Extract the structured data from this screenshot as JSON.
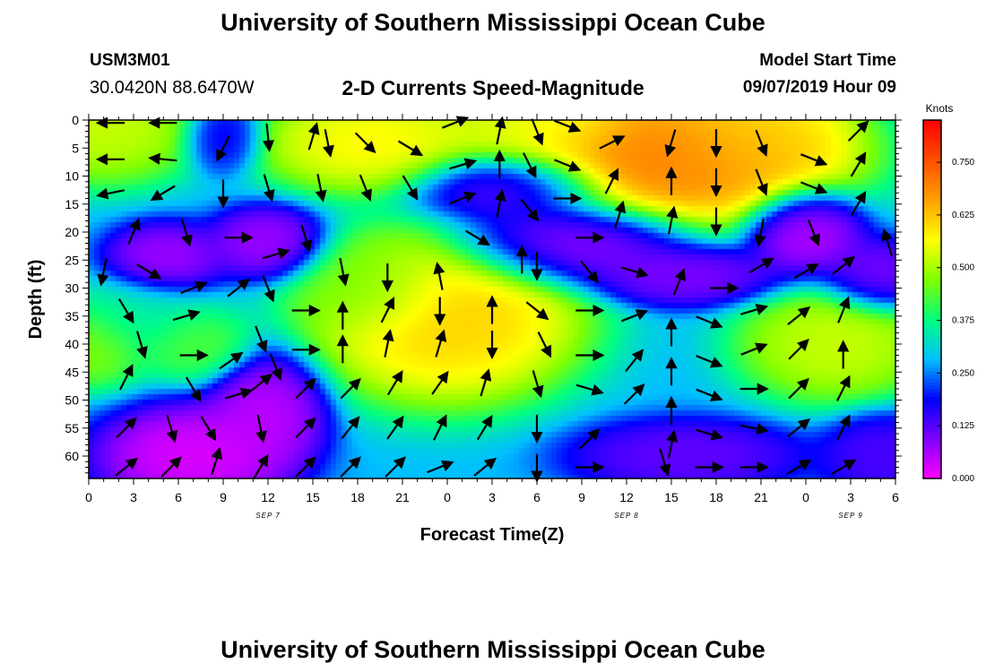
{
  "header": {
    "title": "University of Southern Mississippi Ocean Cube",
    "station_id": "USM3M01",
    "location": "30.0420N 88.6470W",
    "plot_title": "2-D Currents Speed-Magnitude",
    "model_start_label": "Model Start Time",
    "model_start_value": "09/07/2019 Hour 09"
  },
  "footer": {
    "title": "University of Southern Mississippi Ocean Cube"
  },
  "chart_data": {
    "type": "heatmap",
    "subtype": "time-depth current speed with velocity vectors",
    "xlabel": "Forecast Time(Z)",
    "ylabel": "Depth (ft)",
    "x_tick_labels": [
      "0",
      "3",
      "6",
      "9",
      "12",
      "15",
      "18",
      "21",
      "0",
      "3",
      "6",
      "9",
      "12",
      "15",
      "18",
      "21",
      "0",
      "3",
      "6"
    ],
    "x_range_hours": [
      0,
      54
    ],
    "date_labels": [
      {
        "label": "SEP 7",
        "hour": 12
      },
      {
        "label": "SEP 8",
        "hour": 36
      },
      {
        "label": "SEP 9",
        "hour": 51
      }
    ],
    "y_tick_labels": [
      "0",
      "5",
      "10",
      "15",
      "20",
      "25",
      "30",
      "35",
      "40",
      "45",
      "50",
      "55",
      "60"
    ],
    "y_range_ft": [
      0,
      64
    ],
    "y_inverted": true,
    "colorbar": {
      "units": "Knots",
      "min": 0.0,
      "max": 0.85,
      "tick_values": [
        0.0,
        0.125,
        0.25,
        0.375,
        0.5,
        0.625,
        0.75
      ],
      "tick_labels": [
        "0.000",
        "0.125",
        "0.250",
        "0.375",
        "0.500",
        "0.625",
        "0.750"
      ],
      "colors": [
        "#ff00ff",
        "#8000ff",
        "#0000ff",
        "#00c0ff",
        "#00ff80",
        "#80ff00",
        "#ffff00",
        "#ffa000",
        "#ff5000",
        "#ff0000"
      ]
    },
    "speed_centers": [
      {
        "hour": 1,
        "depth_ft": 1,
        "speed": 0.55,
        "radius_h": 5,
        "radius_ft": 8
      },
      {
        "hour": 19,
        "depth_ft": 4,
        "speed": 0.6,
        "radius_h": 6,
        "radius_ft": 7
      },
      {
        "hour": 30,
        "depth_ft": 1,
        "speed": 0.55,
        "radius_h": 5,
        "radius_ft": 6
      },
      {
        "hour": 39,
        "depth_ft": 6,
        "speed": 0.75,
        "radius_h": 9,
        "radius_ft": 10
      },
      {
        "hour": 44,
        "depth_ft": 2,
        "speed": 0.6,
        "radius_h": 5,
        "radius_ft": 8
      },
      {
        "hour": 24,
        "depth_ft": 35,
        "speed": 0.65,
        "radius_h": 7,
        "radius_ft": 12
      },
      {
        "hour": 19,
        "depth_ft": 30,
        "speed": 0.45,
        "radius_h": 4,
        "radius_ft": 7
      },
      {
        "hour": 50,
        "depth_ft": 40,
        "speed": 0.55,
        "radius_h": 5,
        "radius_ft": 8
      },
      {
        "hour": 0,
        "depth_ft": 40,
        "speed": 0.5,
        "radius_h": 3,
        "radius_ft": 6
      },
      {
        "hour": 7,
        "depth_ft": 40,
        "speed": 0.45,
        "radius_h": 3,
        "radius_ft": 5
      },
      {
        "hour": 3,
        "depth_ft": 35,
        "speed": 0.35,
        "radius_h": 4,
        "radius_ft": 6
      },
      {
        "hour": 7,
        "depth_ft": 60,
        "speed": 0.0,
        "radius_h": 5,
        "radius_ft": 7
      },
      {
        "hour": 12,
        "depth_ft": 52,
        "speed": 0.03,
        "radius_h": 3,
        "radius_ft": 8
      },
      {
        "hour": 5,
        "depth_ft": 25,
        "speed": 0.05,
        "radius_h": 3,
        "radius_ft": 5
      },
      {
        "hour": 12,
        "depth_ft": 22,
        "speed": 0.05,
        "radius_h": 3,
        "radius_ft": 5
      },
      {
        "hour": 32,
        "depth_ft": 22,
        "speed": 0.05,
        "radius_h": 6,
        "radius_ft": 6
      },
      {
        "hour": 28,
        "depth_ft": 12,
        "speed": 0.08,
        "radius_h": 5,
        "radius_ft": 5
      },
      {
        "hour": 48,
        "depth_ft": 20,
        "speed": 0.03,
        "radius_h": 3,
        "radius_ft": 6
      },
      {
        "hour": 40,
        "depth_ft": 28,
        "speed": 0.08,
        "radius_h": 5,
        "radius_ft": 4
      },
      {
        "hour": 40,
        "depth_ft": 60,
        "speed": 0.1,
        "radius_h": 6,
        "radius_ft": 5
      },
      {
        "hour": 53,
        "depth_ft": 60,
        "speed": 0.12,
        "radius_h": 3,
        "radius_ft": 6
      },
      {
        "hour": 9,
        "depth_ft": 3,
        "speed": 0.15,
        "radius_h": 2,
        "radius_ft": 5
      },
      {
        "hour": 53,
        "depth_ft": 28,
        "speed": 0.08,
        "radius_h": 3,
        "radius_ft": 5
      }
    ],
    "background_speed": 0.28,
    "vectors": [
      {
        "hour": 1.5,
        "depth_ft": 0.5,
        "dx": -1,
        "dy": 0
      },
      {
        "hour": 5,
        "depth_ft": 0.5,
        "dx": -1,
        "dy": 0
      },
      {
        "hour": 1.5,
        "depth_ft": 7,
        "dx": -1,
        "dy": 0
      },
      {
        "hour": 5,
        "depth_ft": 7,
        "dx": -1,
        "dy": 0.1
      },
      {
        "hour": 1.5,
        "depth_ft": 13,
        "dx": -1,
        "dy": -0.2
      },
      {
        "hour": 5,
        "depth_ft": 13,
        "dx": -1,
        "dy": -0.6
      },
      {
        "hour": 9,
        "depth_ft": 5,
        "dx": -0.5,
        "dy": -1
      },
      {
        "hour": 12,
        "depth_ft": 3,
        "dx": 0.1,
        "dy": -1
      },
      {
        "hour": 9,
        "depth_ft": 13,
        "dx": 0,
        "dy": -1
      },
      {
        "hour": 12,
        "depth_ft": 12,
        "dx": 0.3,
        "dy": -1
      },
      {
        "hour": 15,
        "depth_ft": 3,
        "dx": 0.3,
        "dy": 1
      },
      {
        "hour": 16,
        "depth_ft": 4,
        "dx": 0.2,
        "dy": -1
      },
      {
        "hour": 18.5,
        "depth_ft": 4,
        "dx": 0.8,
        "dy": -0.8
      },
      {
        "hour": 15.5,
        "depth_ft": 12,
        "dx": 0.2,
        "dy": -1
      },
      {
        "hour": 18.5,
        "depth_ft": 12,
        "dx": 0.4,
        "dy": -1
      },
      {
        "hour": 21.5,
        "depth_ft": 5,
        "dx": 1,
        "dy": -0.6
      },
      {
        "hour": 21.5,
        "depth_ft": 12,
        "dx": 0.6,
        "dy": -1
      },
      {
        "hour": 24.5,
        "depth_ft": 0.5,
        "dx": 1,
        "dy": 0.4
      },
      {
        "hour": 27.5,
        "depth_ft": 2,
        "dx": 0.2,
        "dy": 1
      },
      {
        "hour": 30,
        "depth_ft": 2,
        "dx": 0.4,
        "dy": -1
      },
      {
        "hour": 32,
        "depth_ft": 1,
        "dx": 1,
        "dy": -0.4
      },
      {
        "hour": 35,
        "depth_ft": 4,
        "dx": 1,
        "dy": 0.5
      },
      {
        "hour": 39,
        "depth_ft": 4,
        "dx": -0.3,
        "dy": -1
      },
      {
        "hour": 42,
        "depth_ft": 4,
        "dx": 0,
        "dy": -1
      },
      {
        "hour": 45,
        "depth_ft": 4,
        "dx": 0.4,
        "dy": -1
      },
      {
        "hour": 48.5,
        "depth_ft": 7,
        "dx": 1,
        "dy": -0.4
      },
      {
        "hour": 51.5,
        "depth_ft": 2,
        "dx": 1,
        "dy": 1
      },
      {
        "hour": 25,
        "depth_ft": 8,
        "dx": 1,
        "dy": 0.3
      },
      {
        "hour": 27.5,
        "depth_ft": 8,
        "dx": 0,
        "dy": 1
      },
      {
        "hour": 29.5,
        "depth_ft": 8,
        "dx": 0.5,
        "dy": -1
      },
      {
        "hour": 32,
        "depth_ft": 8,
        "dx": 1,
        "dy": -0.4
      },
      {
        "hour": 35,
        "depth_ft": 11,
        "dx": 0.5,
        "dy": 1
      },
      {
        "hour": 39,
        "depth_ft": 11,
        "dx": 0,
        "dy": 1
      },
      {
        "hour": 42,
        "depth_ft": 11,
        "dx": 0,
        "dy": -1
      },
      {
        "hour": 45,
        "depth_ft": 11,
        "dx": 0.4,
        "dy": -1
      },
      {
        "hour": 48.5,
        "depth_ft": 12,
        "dx": 1,
        "dy": -0.4
      },
      {
        "hour": 51.5,
        "depth_ft": 8,
        "dx": 0.6,
        "dy": 1
      },
      {
        "hour": 25,
        "depth_ft": 14,
        "dx": 1,
        "dy": 0.4
      },
      {
        "hour": 27.5,
        "depth_ft": 15,
        "dx": 0.2,
        "dy": 1
      },
      {
        "hour": 29.5,
        "depth_ft": 16,
        "dx": 0.8,
        "dy": -1
      },
      {
        "hour": 32,
        "depth_ft": 14,
        "dx": 1,
        "dy": 0
      },
      {
        "hour": 35.5,
        "depth_ft": 17,
        "dx": 0.3,
        "dy": 1
      },
      {
        "hour": 39,
        "depth_ft": 18,
        "dx": 0.2,
        "dy": 1
      },
      {
        "hour": 42,
        "depth_ft": 18,
        "dx": 0,
        "dy": -1
      },
      {
        "hour": 45,
        "depth_ft": 20,
        "dx": -0.2,
        "dy": -1
      },
      {
        "hour": 48.5,
        "depth_ft": 20,
        "dx": 0.4,
        "dy": -1
      },
      {
        "hour": 51.5,
        "depth_ft": 15,
        "dx": 0.6,
        "dy": 1
      },
      {
        "hour": 1,
        "depth_ft": 27,
        "dx": -0.2,
        "dy": -1
      },
      {
        "hour": 3,
        "depth_ft": 20,
        "dx": 0.4,
        "dy": 1
      },
      {
        "hour": 4,
        "depth_ft": 27,
        "dx": 1,
        "dy": -0.6
      },
      {
        "hour": 6.5,
        "depth_ft": 20,
        "dx": 0.3,
        "dy": -1
      },
      {
        "hour": 7,
        "depth_ft": 30,
        "dx": 1,
        "dy": 0.4
      },
      {
        "hour": 10,
        "depth_ft": 21,
        "dx": 1,
        "dy": 0
      },
      {
        "hour": 10,
        "depth_ft": 30,
        "dx": 1,
        "dy": 0.8
      },
      {
        "hour": 12.5,
        "depth_ft": 24,
        "dx": 1,
        "dy": 0.3
      },
      {
        "hour": 12,
        "depth_ft": 30,
        "dx": 0.4,
        "dy": -1
      },
      {
        "hour": 14.5,
        "depth_ft": 21,
        "dx": 0.3,
        "dy": -1
      },
      {
        "hour": 17,
        "depth_ft": 27,
        "dx": 0.2,
        "dy": -1
      },
      {
        "hour": 20,
        "depth_ft": 28,
        "dx": 0,
        "dy": -1
      },
      {
        "hour": 23.5,
        "depth_ft": 28,
        "dx": -0.2,
        "dy": 1
      },
      {
        "hour": 26,
        "depth_ft": 21,
        "dx": 1,
        "dy": -0.6
      },
      {
        "hour": 29,
        "depth_ft": 25,
        "dx": 0,
        "dy": 1
      },
      {
        "hour": 30,
        "depth_ft": 26,
        "dx": 0,
        "dy": -1
      },
      {
        "hour": 33.5,
        "depth_ft": 21,
        "dx": 1,
        "dy": 0
      },
      {
        "hour": 33.5,
        "depth_ft": 27,
        "dx": 0.8,
        "dy": -1
      },
      {
        "hour": 36.5,
        "depth_ft": 27,
        "dx": 1,
        "dy": -0.3
      },
      {
        "hour": 39.5,
        "depth_ft": 29,
        "dx": 0.4,
        "dy": 1
      },
      {
        "hour": 42.5,
        "depth_ft": 30,
        "dx": 1,
        "dy": 0
      },
      {
        "hour": 45,
        "depth_ft": 26,
        "dx": 1,
        "dy": 0.6
      },
      {
        "hour": 48,
        "depth_ft": 27,
        "dx": 1,
        "dy": 0.6
      },
      {
        "hour": 50.5,
        "depth_ft": 26,
        "dx": 1,
        "dy": 0.8
      },
      {
        "hour": 53.5,
        "depth_ft": 22,
        "dx": -0.3,
        "dy": 1
      },
      {
        "hour": 2.5,
        "depth_ft": 34,
        "dx": 0.6,
        "dy": -1
      },
      {
        "hour": 6.5,
        "depth_ft": 35,
        "dx": 1,
        "dy": 0.3
      },
      {
        "hour": 11.5,
        "depth_ft": 39,
        "dx": 0.4,
        "dy": -1
      },
      {
        "hour": 14.5,
        "depth_ft": 34,
        "dx": 1,
        "dy": 0
      },
      {
        "hour": 17,
        "depth_ft": 35,
        "dx": 0,
        "dy": 1
      },
      {
        "hour": 20,
        "depth_ft": 34,
        "dx": 0.5,
        "dy": 1
      },
      {
        "hour": 23.5,
        "depth_ft": 34,
        "dx": 0,
        "dy": -1
      },
      {
        "hour": 27,
        "depth_ft": 34,
        "dx": 0,
        "dy": 1
      },
      {
        "hour": 30,
        "depth_ft": 34,
        "dx": 1,
        "dy": -0.8
      },
      {
        "hour": 33.5,
        "depth_ft": 34,
        "dx": 1,
        "dy": 0
      },
      {
        "hour": 36.5,
        "depth_ft": 35,
        "dx": 1,
        "dy": 0.4
      },
      {
        "hour": 39,
        "depth_ft": 38,
        "dx": 0,
        "dy": 1
      },
      {
        "hour": 41.5,
        "depth_ft": 36,
        "dx": 1,
        "dy": -0.4
      },
      {
        "hour": 44.5,
        "depth_ft": 34,
        "dx": 1,
        "dy": 0.3
      },
      {
        "hour": 47.5,
        "depth_ft": 35,
        "dx": 1,
        "dy": 0.8
      },
      {
        "hour": 50.5,
        "depth_ft": 34,
        "dx": 0.4,
        "dy": 1
      },
      {
        "hour": 3.5,
        "depth_ft": 40,
        "dx": 0.3,
        "dy": -1
      },
      {
        "hour": 7,
        "depth_ft": 42,
        "dx": 1,
        "dy": 0
      },
      {
        "hour": 9.5,
        "depth_ft": 43,
        "dx": 1,
        "dy": 0.7
      },
      {
        "hour": 12.5,
        "depth_ft": 44,
        "dx": 0.4,
        "dy": -1
      },
      {
        "hour": 14.5,
        "depth_ft": 41,
        "dx": 1,
        "dy": 0
      },
      {
        "hour": 17,
        "depth_ft": 41,
        "dx": 0,
        "dy": 1
      },
      {
        "hour": 20,
        "depth_ft": 40,
        "dx": 0.2,
        "dy": 1
      },
      {
        "hour": 23.5,
        "depth_ft": 40,
        "dx": 0.3,
        "dy": 1
      },
      {
        "hour": 27,
        "depth_ft": 40,
        "dx": 0,
        "dy": -1
      },
      {
        "hour": 30.5,
        "depth_ft": 40,
        "dx": 0.5,
        "dy": -1
      },
      {
        "hour": 33.5,
        "depth_ft": 42,
        "dx": 1,
        "dy": 0
      },
      {
        "hour": 36.5,
        "depth_ft": 43,
        "dx": 0.8,
        "dy": 1
      },
      {
        "hour": 39,
        "depth_ft": 45,
        "dx": 0,
        "dy": 1
      },
      {
        "hour": 41.5,
        "depth_ft": 43,
        "dx": 1,
        "dy": -0.4
      },
      {
        "hour": 44.5,
        "depth_ft": 41,
        "dx": 1,
        "dy": 0.4
      },
      {
        "hour": 47.5,
        "depth_ft": 41,
        "dx": 1,
        "dy": 1
      },
      {
        "hour": 50.5,
        "depth_ft": 42,
        "dx": 0,
        "dy": 1
      },
      {
        "hour": 2.5,
        "depth_ft": 46,
        "dx": 0.5,
        "dy": 1
      },
      {
        "hour": 7,
        "depth_ft": 48,
        "dx": 0.6,
        "dy": -1
      },
      {
        "hour": 10,
        "depth_ft": 49,
        "dx": 1,
        "dy": 0.3
      },
      {
        "hour": 11.5,
        "depth_ft": 47,
        "dx": 1,
        "dy": 0.8
      },
      {
        "hour": 14.5,
        "depth_ft": 48,
        "dx": 1,
        "dy": 1
      },
      {
        "hour": 17.5,
        "depth_ft": 48,
        "dx": 1,
        "dy": 1
      },
      {
        "hour": 20.5,
        "depth_ft": 47,
        "dx": 0.6,
        "dy": 1
      },
      {
        "hour": 23.5,
        "depth_ft": 47,
        "dx": 0.7,
        "dy": 1
      },
      {
        "hour": 26.5,
        "depth_ft": 47,
        "dx": 0.3,
        "dy": 1
      },
      {
        "hour": 30,
        "depth_ft": 47,
        "dx": 0.3,
        "dy": -1
      },
      {
        "hour": 33.5,
        "depth_ft": 48,
        "dx": 1,
        "dy": -0.3
      },
      {
        "hour": 36.5,
        "depth_ft": 49,
        "dx": 1,
        "dy": 1
      },
      {
        "hour": 39,
        "depth_ft": 52,
        "dx": 0,
        "dy": 1
      },
      {
        "hour": 41.5,
        "depth_ft": 49,
        "dx": 1,
        "dy": -0.4
      },
      {
        "hour": 44.5,
        "depth_ft": 48,
        "dx": 1,
        "dy": 0
      },
      {
        "hour": 47.5,
        "depth_ft": 48,
        "dx": 1,
        "dy": 1
      },
      {
        "hour": 50.5,
        "depth_ft": 48,
        "dx": 0.5,
        "dy": 1
      },
      {
        "hour": 2.5,
        "depth_ft": 55,
        "dx": 1,
        "dy": 1
      },
      {
        "hour": 5.5,
        "depth_ft": 55,
        "dx": 0.3,
        "dy": -1
      },
      {
        "hour": 8,
        "depth_ft": 55,
        "dx": 0.6,
        "dy": -1
      },
      {
        "hour": 11.5,
        "depth_ft": 55,
        "dx": 0.2,
        "dy": -1
      },
      {
        "hour": 14.5,
        "depth_ft": 55,
        "dx": 1,
        "dy": 1
      },
      {
        "hour": 17.5,
        "depth_ft": 55,
        "dx": 0.8,
        "dy": 1
      },
      {
        "hour": 20.5,
        "depth_ft": 55,
        "dx": 0.7,
        "dy": 1
      },
      {
        "hour": 23.5,
        "depth_ft": 55,
        "dx": 0.5,
        "dy": 1
      },
      {
        "hour": 26.5,
        "depth_ft": 55,
        "dx": 0.6,
        "dy": 1
      },
      {
        "hour": 30,
        "depth_ft": 55,
        "dx": 0,
        "dy": -1
      },
      {
        "hour": 33.5,
        "depth_ft": 57,
        "dx": 1,
        "dy": 1
      },
      {
        "hour": 39,
        "depth_ft": 58,
        "dx": 0.2,
        "dy": 1
      },
      {
        "hour": 41.5,
        "depth_ft": 56,
        "dx": 1,
        "dy": -0.3
      },
      {
        "hour": 44.5,
        "depth_ft": 55,
        "dx": 1,
        "dy": -0.2
      },
      {
        "hour": 47.5,
        "depth_ft": 55,
        "dx": 1,
        "dy": 0.8
      },
      {
        "hour": 50.5,
        "depth_ft": 55,
        "dx": 0.5,
        "dy": 1
      },
      {
        "hour": 2.5,
        "depth_ft": 62,
        "dx": 1,
        "dy": 0.8
      },
      {
        "hour": 5.5,
        "depth_ft": 62,
        "dx": 1,
        "dy": 1
      },
      {
        "hour": 8.5,
        "depth_ft": 61,
        "dx": 0.3,
        "dy": 1
      },
      {
        "hour": 11.5,
        "depth_ft": 62,
        "dx": 0.6,
        "dy": 1
      },
      {
        "hour": 14.5,
        "depth_ft": 62,
        "dx": 1,
        "dy": 1
      },
      {
        "hour": 17.5,
        "depth_ft": 62,
        "dx": 1,
        "dy": 1
      },
      {
        "hour": 20.5,
        "depth_ft": 62,
        "dx": 1,
        "dy": 1
      },
      {
        "hour": 23.5,
        "depth_ft": 62,
        "dx": 1,
        "dy": 0.4
      },
      {
        "hour": 26.5,
        "depth_ft": 62,
        "dx": 1,
        "dy": 0.8
      },
      {
        "hour": 30,
        "depth_ft": 62,
        "dx": 0,
        "dy": -1
      },
      {
        "hour": 33.5,
        "depth_ft": 62,
        "dx": 1,
        "dy": 0
      },
      {
        "hour": 38.5,
        "depth_ft": 61,
        "dx": 0.3,
        "dy": -1
      },
      {
        "hour": 41.5,
        "depth_ft": 62,
        "dx": 1,
        "dy": 0
      },
      {
        "hour": 44.5,
        "depth_ft": 62,
        "dx": 1,
        "dy": 0
      },
      {
        "hour": 47.5,
        "depth_ft": 62,
        "dx": 1,
        "dy": 0.6
      },
      {
        "hour": 50.5,
        "depth_ft": 62,
        "dx": 1,
        "dy": 0.6
      }
    ]
  }
}
